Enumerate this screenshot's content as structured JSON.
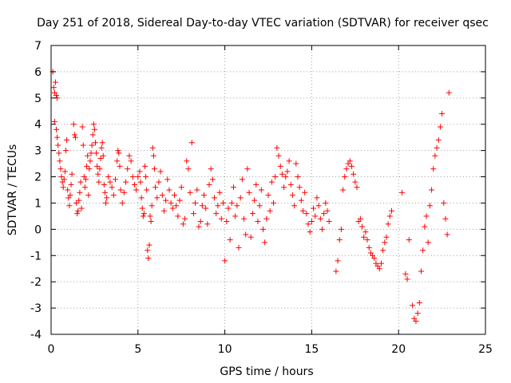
{
  "chart_data": {
    "type": "scatter",
    "title": "Day 251 of 2018, Sidereal Day-to-day VTEC variation (SDTVAR) for receiver qsec",
    "xlabel": "GPS time / hours",
    "ylabel": "SDTVAR / TECUs",
    "xlim": [
      0,
      25
    ],
    "ylim": [
      -4,
      7
    ],
    "xticks": [
      0,
      5,
      10,
      15,
      20,
      25
    ],
    "yticks": [
      -4,
      -3,
      -2,
      -1,
      0,
      1,
      2,
      3,
      4,
      5,
      6,
      7
    ],
    "grid": true,
    "marker": "+",
    "color": "#ff0000",
    "series": [
      {
        "name": "SDTVAR",
        "points": [
          [
            0.1,
            6.0
          ],
          [
            0.15,
            5.4
          ],
          [
            0.2,
            5.2
          ],
          [
            0.25,
            5.6
          ],
          [
            0.3,
            5.1
          ],
          [
            0.35,
            5.0
          ],
          [
            0.2,
            4.1
          ],
          [
            0.3,
            3.8
          ],
          [
            0.35,
            3.5
          ],
          [
            0.4,
            3.2
          ],
          [
            0.45,
            2.9
          ],
          [
            0.5,
            2.6
          ],
          [
            0.55,
            2.3
          ],
          [
            0.6,
            2.0
          ],
          [
            0.65,
            1.8
          ],
          [
            0.7,
            1.6
          ],
          [
            0.75,
            1.9
          ],
          [
            0.8,
            2.2
          ],
          [
            0.85,
            3.0
          ],
          [
            0.9,
            3.4
          ],
          [
            0.95,
            1.5
          ],
          [
            1.0,
            1.2
          ],
          [
            1.05,
            0.9
          ],
          [
            1.1,
            1.3
          ],
          [
            1.15,
            1.7
          ],
          [
            1.2,
            2.1
          ],
          [
            1.3,
            4.0
          ],
          [
            1.35,
            3.6
          ],
          [
            1.4,
            3.5
          ],
          [
            1.45,
            1.0
          ],
          [
            1.5,
            0.6
          ],
          [
            1.55,
            0.7
          ],
          [
            1.6,
            1.1
          ],
          [
            1.65,
            1.4
          ],
          [
            1.7,
            1.8
          ],
          [
            1.75,
            0.8
          ],
          [
            1.8,
            3.9
          ],
          [
            1.85,
            3.2
          ],
          [
            1.9,
            2.0
          ],
          [
            1.95,
            1.6
          ],
          [
            2.0,
            1.9
          ],
          [
            2.05,
            2.4
          ],
          [
            2.1,
            2.8
          ],
          [
            2.15,
            1.3
          ],
          [
            2.2,
            2.3
          ],
          [
            2.25,
            2.6
          ],
          [
            2.3,
            2.9
          ],
          [
            2.35,
            3.2
          ],
          [
            2.4,
            3.6
          ],
          [
            2.45,
            4.0
          ],
          [
            2.5,
            3.8
          ],
          [
            2.55,
            3.3
          ],
          [
            2.6,
            2.9
          ],
          [
            2.65,
            2.4
          ],
          [
            2.7,
            2.1
          ],
          [
            2.75,
            1.8
          ],
          [
            2.8,
            2.3
          ],
          [
            2.85,
            2.7
          ],
          [
            2.9,
            3.1
          ],
          [
            2.95,
            3.3
          ],
          [
            3.0,
            2.8
          ],
          [
            3.05,
            1.7
          ],
          [
            3.1,
            1.4
          ],
          [
            3.15,
            1.0
          ],
          [
            3.2,
            1.2
          ],
          [
            3.3,
            2.0
          ],
          [
            3.4,
            1.8
          ],
          [
            3.5,
            1.6
          ],
          [
            3.6,
            1.3
          ],
          [
            3.7,
            1.9
          ],
          [
            3.8,
            2.6
          ],
          [
            3.85,
            3.0
          ],
          [
            3.9,
            2.9
          ],
          [
            3.95,
            2.4
          ],
          [
            4.0,
            1.5
          ],
          [
            4.1,
            1.0
          ],
          [
            4.2,
            1.4
          ],
          [
            4.3,
            1.8
          ],
          [
            4.4,
            2.3
          ],
          [
            4.5,
            2.8
          ],
          [
            4.6,
            2.6
          ],
          [
            4.7,
            2.0
          ],
          [
            4.8,
            1.7
          ],
          [
            4.9,
            1.5
          ],
          [
            5.0,
            2.0
          ],
          [
            5.1,
            2.2
          ],
          [
            5.15,
            1.8
          ],
          [
            5.2,
            1.2
          ],
          [
            5.25,
            0.8
          ],
          [
            5.3,
            0.5
          ],
          [
            5.35,
            0.6
          ],
          [
            5.4,
            2.4
          ],
          [
            5.45,
            2.0
          ],
          [
            5.5,
            1.5
          ],
          [
            5.55,
            -0.8
          ],
          [
            5.6,
            -1.1
          ],
          [
            5.65,
            -0.6
          ],
          [
            5.7,
            0.5
          ],
          [
            5.75,
            0.3
          ],
          [
            5.8,
            0.9
          ],
          [
            5.85,
            3.1
          ],
          [
            5.9,
            2.8
          ],
          [
            5.95,
            2.3
          ],
          [
            6.0,
            1.6
          ],
          [
            6.1,
            1.2
          ],
          [
            6.2,
            1.8
          ],
          [
            6.3,
            2.2
          ],
          [
            6.4,
            1.3
          ],
          [
            6.5,
            0.7
          ],
          [
            6.6,
            1.1
          ],
          [
            6.7,
            1.9
          ],
          [
            6.8,
            1.5
          ],
          [
            6.9,
            1.0
          ],
          [
            7.0,
            0.8
          ],
          [
            7.1,
            1.3
          ],
          [
            7.2,
            0.9
          ],
          [
            7.3,
            0.5
          ],
          [
            7.4,
            1.1
          ],
          [
            7.5,
            1.6
          ],
          [
            7.6,
            0.2
          ],
          [
            7.7,
            0.4
          ],
          [
            7.8,
            2.6
          ],
          [
            7.9,
            2.3
          ],
          [
            8.0,
            1.4
          ],
          [
            8.1,
            3.3
          ],
          [
            8.2,
            0.6
          ],
          [
            8.3,
            1.0
          ],
          [
            8.4,
            1.5
          ],
          [
            8.5,
            0.1
          ],
          [
            8.6,
            0.3
          ],
          [
            8.7,
            0.9
          ],
          [
            8.8,
            1.3
          ],
          [
            8.9,
            0.8
          ],
          [
            9.0,
            0.2
          ],
          [
            9.1,
            1.7
          ],
          [
            9.2,
            2.3
          ],
          [
            9.3,
            1.9
          ],
          [
            9.4,
            1.2
          ],
          [
            9.5,
            0.6
          ],
          [
            9.6,
            0.9
          ],
          [
            9.7,
            1.4
          ],
          [
            9.8,
            0.4
          ],
          [
            9.9,
            1.0
          ],
          [
            10.0,
            -1.2
          ],
          [
            10.1,
            0.3
          ],
          [
            10.2,
            0.8
          ],
          [
            10.3,
            -0.4
          ],
          [
            10.4,
            1.0
          ],
          [
            10.5,
            1.6
          ],
          [
            10.6,
            0.5
          ],
          [
            10.7,
            0.9
          ],
          [
            10.8,
            -0.7
          ],
          [
            10.9,
            1.2
          ],
          [
            11.0,
            1.9
          ],
          [
            11.1,
            0.4
          ],
          [
            11.2,
            -0.2
          ],
          [
            11.3,
            2.3
          ],
          [
            11.4,
            1.4
          ],
          [
            11.5,
            -0.3
          ],
          [
            11.6,
            0.6
          ],
          [
            11.7,
            1.1
          ],
          [
            11.8,
            1.7
          ],
          [
            11.9,
            0.3
          ],
          [
            12.0,
            0.9
          ],
          [
            12.1,
            1.5
          ],
          [
            12.2,
            0.0
          ],
          [
            12.3,
            -0.5
          ],
          [
            12.4,
            0.4
          ],
          [
            12.5,
            1.3
          ],
          [
            12.6,
            0.7
          ],
          [
            12.7,
            1.8
          ],
          [
            12.8,
            1.0
          ],
          [
            12.9,
            2.0
          ],
          [
            13.0,
            3.1
          ],
          [
            13.1,
            2.8
          ],
          [
            13.2,
            2.4
          ],
          [
            13.3,
            2.1
          ],
          [
            13.4,
            1.6
          ],
          [
            13.5,
            2.0
          ],
          [
            13.6,
            2.2
          ],
          [
            13.7,
            2.6
          ],
          [
            13.8,
            1.7
          ],
          [
            13.9,
            1.3
          ],
          [
            14.0,
            0.9
          ],
          [
            14.1,
            2.5
          ],
          [
            14.2,
            2.0
          ],
          [
            14.3,
            1.6
          ],
          [
            14.4,
            1.1
          ],
          [
            14.5,
            0.7
          ],
          [
            14.6,
            1.4
          ],
          [
            14.7,
            0.6
          ],
          [
            14.8,
            0.2
          ],
          [
            14.9,
            -0.1
          ],
          [
            15.0,
            0.3
          ],
          [
            15.1,
            0.8
          ],
          [
            15.2,
            0.5
          ],
          [
            15.3,
            1.2
          ],
          [
            15.4,
            0.9
          ],
          [
            15.5,
            0.4
          ],
          [
            15.6,
            0.0
          ],
          [
            15.7,
            0.6
          ],
          [
            15.8,
            1.0
          ],
          [
            15.9,
            0.7
          ],
          [
            16.0,
            0.3
          ],
          [
            16.4,
            -1.6
          ],
          [
            16.5,
            -1.2
          ],
          [
            16.6,
            -0.4
          ],
          [
            16.7,
            0.0
          ],
          [
            16.8,
            1.5
          ],
          [
            16.9,
            2.0
          ],
          [
            17.0,
            2.3
          ],
          [
            17.1,
            2.5
          ],
          [
            17.2,
            2.6
          ],
          [
            17.3,
            2.4
          ],
          [
            17.4,
            2.1
          ],
          [
            17.5,
            1.8
          ],
          [
            17.6,
            1.6
          ],
          [
            17.7,
            0.3
          ],
          [
            17.8,
            0.4
          ],
          [
            17.9,
            0.1
          ],
          [
            18.0,
            -0.3
          ],
          [
            18.1,
            -0.1
          ],
          [
            18.2,
            -0.4
          ],
          [
            18.3,
            -0.7
          ],
          [
            18.4,
            -0.9
          ],
          [
            18.5,
            -1.0
          ],
          [
            18.6,
            -1.1
          ],
          [
            18.7,
            -1.3
          ],
          [
            18.8,
            -1.4
          ],
          [
            18.9,
            -1.5
          ],
          [
            19.0,
            -1.3
          ],
          [
            19.1,
            -0.8
          ],
          [
            19.2,
            -0.5
          ],
          [
            19.3,
            -0.3
          ],
          [
            19.4,
            0.2
          ],
          [
            19.5,
            0.5
          ],
          [
            19.6,
            0.7
          ],
          [
            20.2,
            1.4
          ],
          [
            20.4,
            -1.7
          ],
          [
            20.5,
            -1.9
          ],
          [
            20.6,
            -0.4
          ],
          [
            20.8,
            -2.9
          ],
          [
            20.9,
            -3.4
          ],
          [
            21.0,
            -3.5
          ],
          [
            21.1,
            -3.2
          ],
          [
            21.2,
            -2.8
          ],
          [
            21.3,
            -1.6
          ],
          [
            21.4,
            -0.8
          ],
          [
            21.5,
            0.1
          ],
          [
            21.6,
            0.5
          ],
          [
            21.7,
            -0.5
          ],
          [
            21.8,
            0.9
          ],
          [
            21.9,
            1.5
          ],
          [
            22.0,
            2.3
          ],
          [
            22.1,
            2.8
          ],
          [
            22.2,
            3.1
          ],
          [
            22.3,
            3.4
          ],
          [
            22.4,
            3.9
          ],
          [
            22.5,
            4.4
          ],
          [
            22.6,
            1.0
          ],
          [
            22.7,
            0.4
          ],
          [
            22.8,
            -0.2
          ],
          [
            22.9,
            5.2
          ]
        ]
      }
    ]
  }
}
